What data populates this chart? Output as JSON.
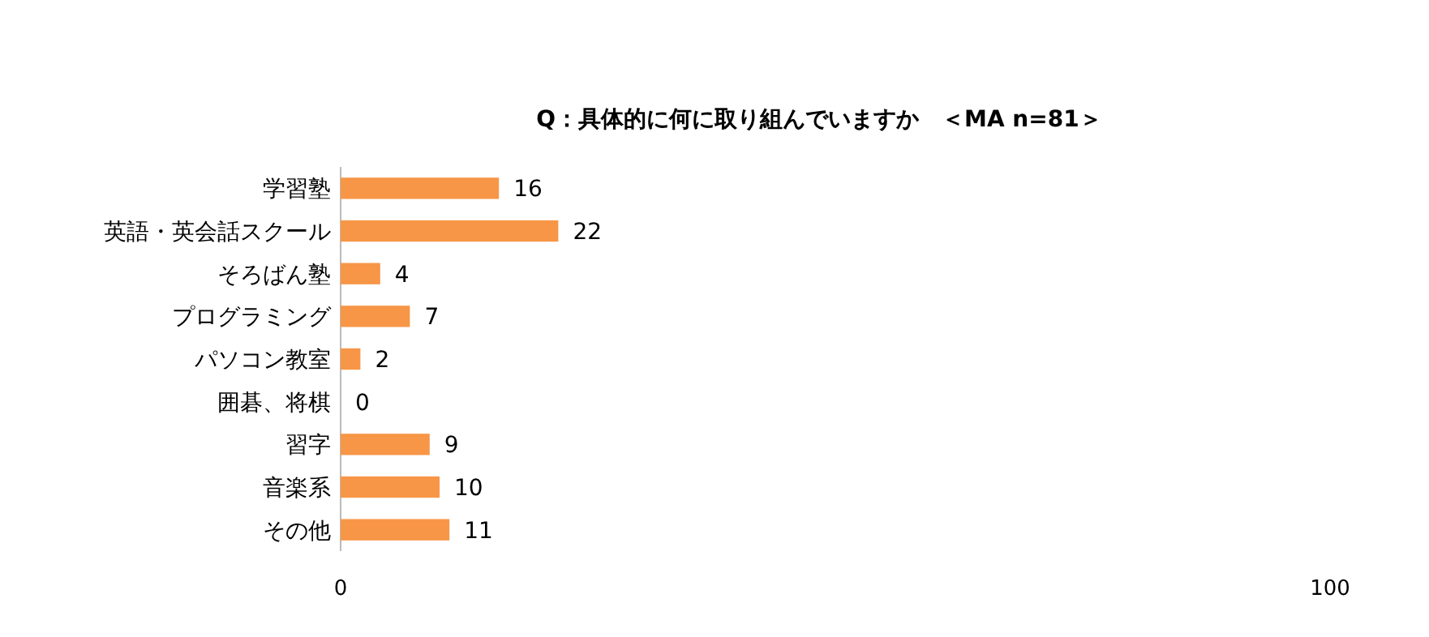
{
  "chart_data": {
    "type": "bar",
    "orientation": "horizontal",
    "title": "Q：具体的に何に取り組んでいますか　＜MA n=81＞",
    "categories": [
      "学習塾",
      "英語・英会話スクール",
      "そろばん塾",
      "プログラミング",
      "パソコン教室",
      "囲碁、将棋",
      "習字",
      "音楽系",
      "その他"
    ],
    "values": [
      16,
      22,
      4,
      7,
      2,
      0,
      9,
      10,
      11
    ],
    "color": "#f79646",
    "xlim": [
      0,
      100
    ],
    "xticks": [
      0,
      100
    ],
    "data_labels": true,
    "grid": false
  }
}
